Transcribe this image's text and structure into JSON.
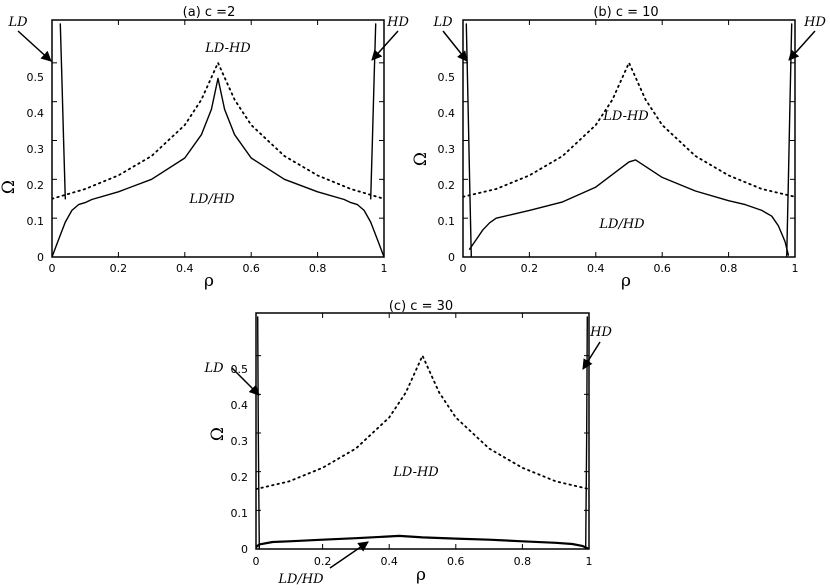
{
  "chart_data": [
    {
      "type": "line",
      "title": "(a) c =2",
      "xlabel": "ρ",
      "ylabel": "Ω",
      "xlim": [
        0,
        1
      ],
      "ylim": [
        0,
        0.6
      ],
      "xticks": [
        0,
        0.2,
        0.4,
        0.6,
        0.8,
        1
      ],
      "xtick_labels": [
        "0",
        "0.2",
        "0.4",
        "0.6",
        "0.8",
        "1"
      ],
      "yticks": [
        0,
        0.1,
        0.2,
        0.3,
        0.4,
        0.5
      ],
      "ytick_labels": [
        "0",
        "0.1",
        "0.2",
        "0.3",
        "0.4",
        "0.5"
      ],
      "series": [
        {
          "style": "dotted",
          "x": [
            0,
            0.1,
            0.2,
            0.3,
            0.4,
            0.45,
            0.5,
            0.55,
            0.6,
            0.7,
            0.8,
            0.9,
            1
          ],
          "y": [
            0.15,
            0.175,
            0.21,
            0.26,
            0.34,
            0.405,
            0.5,
            0.405,
            0.34,
            0.26,
            0.21,
            0.175,
            0.15
          ]
        },
        {
          "style": "solid",
          "x": [
            0,
            0.02,
            0.04,
            0.06,
            0.08,
            0.1,
            0.12,
            0.2,
            0.3,
            0.4,
            0.45,
            0.48,
            0.5,
            0.52,
            0.55,
            0.6,
            0.7,
            0.8,
            0.88,
            0.9,
            0.92,
            0.94,
            0.96,
            0.98,
            1
          ],
          "y": [
            0,
            0.045,
            0.09,
            0.12,
            0.135,
            0.14,
            0.148,
            0.168,
            0.2,
            0.255,
            0.315,
            0.38,
            0.46,
            0.38,
            0.315,
            0.255,
            0.2,
            0.168,
            0.148,
            0.14,
            0.135,
            0.12,
            0.09,
            0.045,
            0
          ]
        },
        {
          "style": "solid",
          "x": [
            0.025,
            0.03,
            0.035,
            0.04
          ],
          "y": [
            0.6,
            0.45,
            0.3,
            0.15
          ]
        },
        {
          "style": "solid",
          "x": [
            0.96,
            0.965,
            0.97,
            0.975
          ],
          "y": [
            0.15,
            0.3,
            0.45,
            0.6
          ]
        }
      ],
      "annotations": [
        {
          "text": "LD",
          "x": 0.035,
          "y": 0.5
        },
        {
          "text": "HD",
          "x": 0.965,
          "y": 0.5
        },
        {
          "text": "LD-HD",
          "x": 0.45,
          "y": 0.54
        },
        {
          "text": "LD/HD",
          "x": 0.45,
          "y": 0.14
        }
      ]
    },
    {
      "type": "line",
      "title": "(b) c = 10",
      "xlabel": "ρ",
      "ylabel": "Ω",
      "xlim": [
        0,
        1
      ],
      "ylim": [
        0,
        0.6
      ],
      "xticks": [
        0,
        0.2,
        0.4,
        0.6,
        0.8,
        1
      ],
      "xtick_labels": [
        "0",
        "0.2",
        "0.4",
        "0.6",
        "0.8",
        "1"
      ],
      "yticks": [
        0,
        0.1,
        0.2,
        0.3,
        0.4,
        0.5
      ],
      "ytick_labels": [
        "0",
        "0.1",
        "0.2",
        "0.3",
        "0.4",
        "0.5"
      ],
      "series": [
        {
          "style": "dotted",
          "x": [
            0,
            0.1,
            0.2,
            0.3,
            0.4,
            0.45,
            0.5,
            0.55,
            0.6,
            0.7,
            0.8,
            0.9,
            1
          ],
          "y": [
            0.155,
            0.175,
            0.21,
            0.26,
            0.34,
            0.405,
            0.5,
            0.405,
            0.34,
            0.26,
            0.21,
            0.175,
            0.155
          ]
        },
        {
          "style": "solid",
          "x": [
            0.02,
            0.04,
            0.06,
            0.08,
            0.1,
            0.15,
            0.2,
            0.3,
            0.4,
            0.5,
            0.52,
            0.6,
            0.7,
            0.8,
            0.85,
            0.9,
            0.93,
            0.95,
            0.97,
            0.98
          ],
          "y": [
            0.02,
            0.045,
            0.07,
            0.088,
            0.1,
            0.11,
            0.12,
            0.142,
            0.18,
            0.245,
            0.25,
            0.205,
            0.17,
            0.145,
            0.135,
            0.12,
            0.105,
            0.08,
            0.04,
            0.005
          ]
        },
        {
          "style": "solid",
          "x": [
            0.01,
            0.015,
            0.02,
            0.025
          ],
          "y": [
            0.6,
            0.4,
            0.2,
            0
          ]
        },
        {
          "style": "solid",
          "x": [
            0.975,
            0.98,
            0.985,
            0.99
          ],
          "y": [
            0,
            0.2,
            0.4,
            0.6
          ]
        }
      ],
      "annotations": [
        {
          "text": "LD",
          "x": 0.02,
          "y": 0.5
        },
        {
          "text": "HD",
          "x": 0.98,
          "y": 0.5
        },
        {
          "text": "LD-HD",
          "x": 0.5,
          "y": 0.32
        },
        {
          "text": "LD/HD",
          "x": 0.6,
          "y": 0.08
        }
      ]
    },
    {
      "type": "line",
      "title": "(c) c = 30",
      "xlabel": "ρ",
      "ylabel": "Ω",
      "xlim": [
        0,
        1
      ],
      "ylim": [
        0,
        0.6
      ],
      "xticks": [
        0,
        0.2,
        0.4,
        0.6,
        0.8,
        1
      ],
      "xtick_labels": [
        "0",
        "0.2",
        "0.4",
        "0.6",
        "0.8",
        "1"
      ],
      "yticks": [
        0,
        0.1,
        0.2,
        0.3,
        0.4,
        0.5
      ],
      "ytick_labels": [
        "0",
        "0.1",
        "0.2",
        "0.3",
        "0.4",
        "0.5"
      ],
      "series": [
        {
          "style": "dotted",
          "x": [
            0,
            0.1,
            0.2,
            0.3,
            0.4,
            0.45,
            0.5,
            0.55,
            0.6,
            0.7,
            0.8,
            0.9,
            1
          ],
          "y": [
            0.155,
            0.175,
            0.21,
            0.26,
            0.34,
            0.405,
            0.5,
            0.405,
            0.34,
            0.26,
            0.21,
            0.175,
            0.155
          ]
        },
        {
          "style": "solid",
          "x": [
            0,
            0.01,
            0.05,
            0.1,
            0.2,
            0.3,
            0.43,
            0.5,
            0.6,
            0.7,
            0.8,
            0.9,
            0.95,
            0.98,
            1
          ],
          "y": [
            0.005,
            0.012,
            0.018,
            0.02,
            0.024,
            0.028,
            0.034,
            0.03,
            0.027,
            0.024,
            0.02,
            0.016,
            0.013,
            0.008,
            0
          ]
        },
        {
          "style": "solid",
          "x": [
            0.005,
            0.007,
            0.01
          ],
          "y": [
            0.6,
            0.3,
            0
          ]
        },
        {
          "style": "solid",
          "x": [
            0.99,
            0.993,
            0.995
          ],
          "y": [
            0,
            0.3,
            0.6
          ]
        }
      ],
      "annotations": [
        {
          "text": "LD",
          "x": 0.005,
          "y": 0.41
        },
        {
          "text": "HD",
          "x": 0.995,
          "y": 0.41
        },
        {
          "text": "LD-HD",
          "x": 0.45,
          "y": 0.14
        },
        {
          "text": "LD/HD",
          "x": 0.38,
          "y": 0.02
        }
      ]
    }
  ]
}
